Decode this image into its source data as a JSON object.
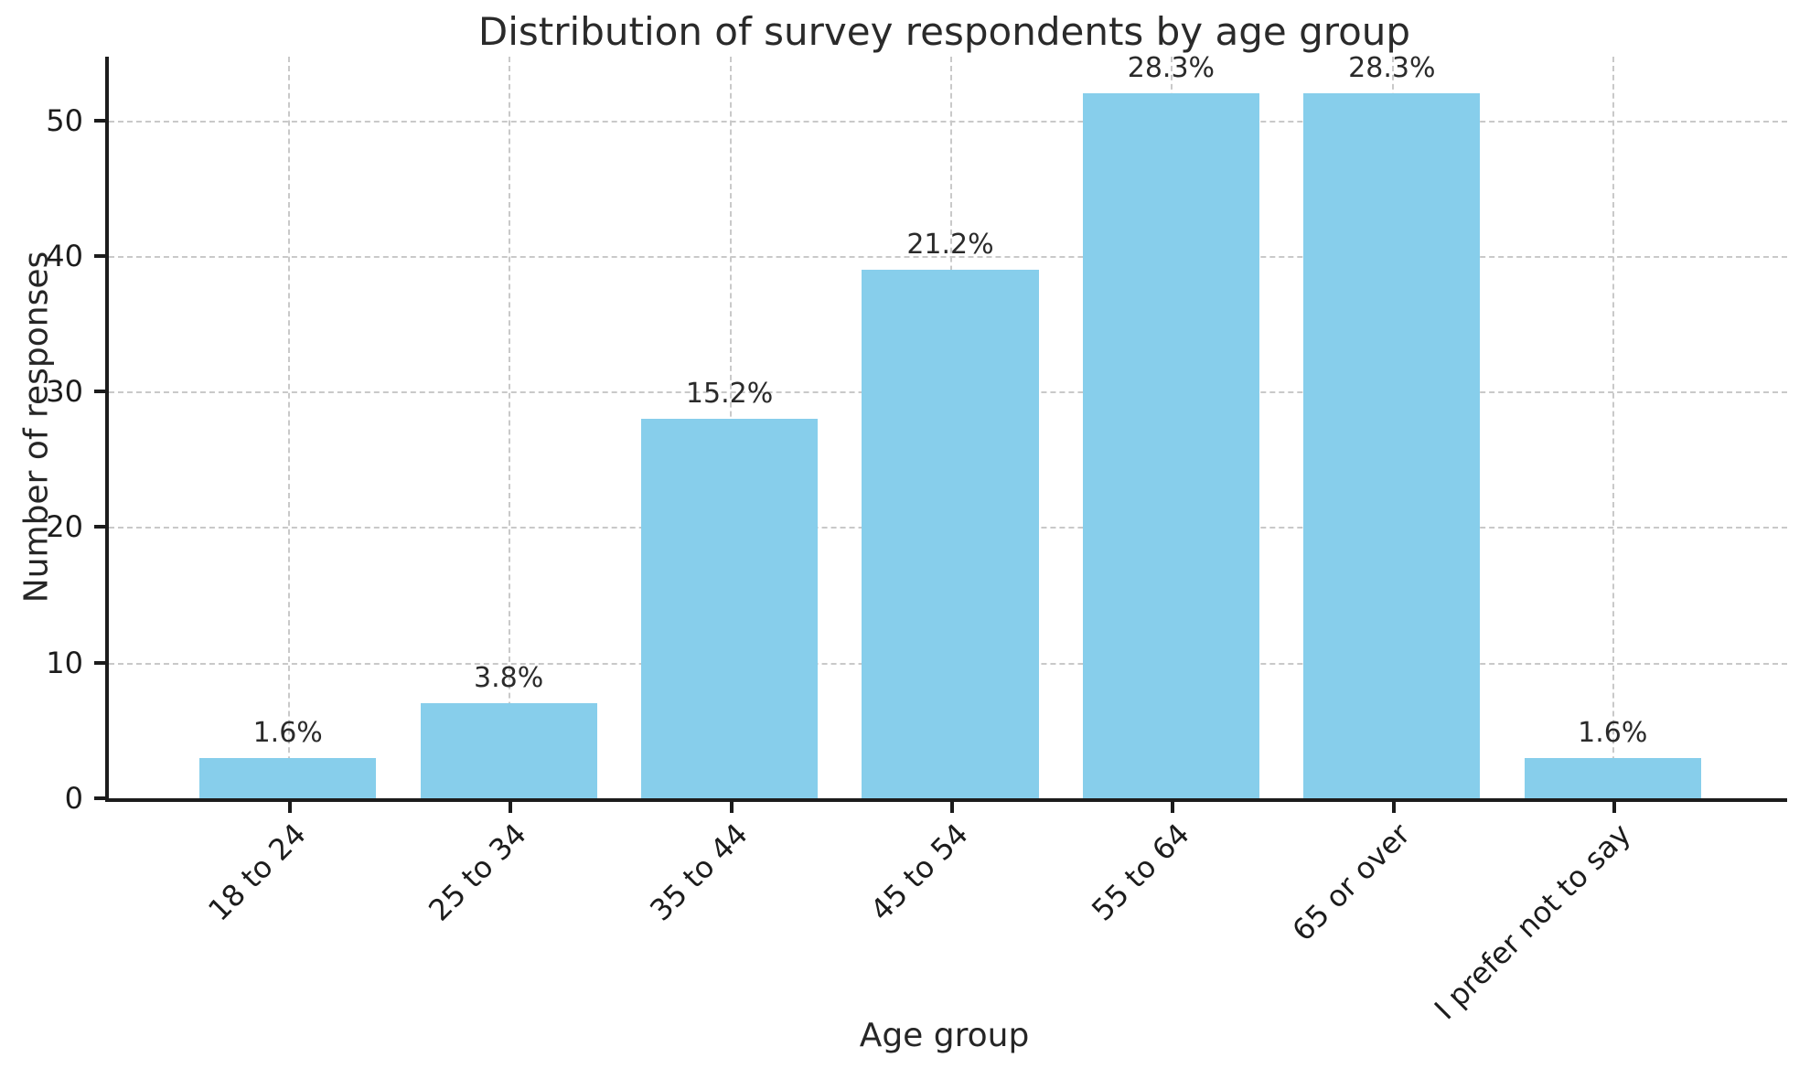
{
  "chart_data": {
    "type": "bar",
    "title": "Distribution of survey respondents by age group",
    "xlabel": "Age group",
    "ylabel": "Number of responses",
    "categories": [
      "18 to 24",
      "25 to 34",
      "35 to 44",
      "45 to 54",
      "55 to 64",
      "65 or over",
      "I prefer not to say"
    ],
    "values": [
      3,
      7,
      28,
      39,
      52,
      52,
      3
    ],
    "bar_labels": [
      "1.6%",
      "3.8%",
      "15.2%",
      "21.2%",
      "28.3%",
      "28.3%",
      "1.6%"
    ],
    "yticks": [
      0,
      10,
      20,
      30,
      40,
      50
    ],
    "ylim": [
      0,
      54.7
    ],
    "grid": "both, dashed, behind bars",
    "legend": "none",
    "bar_color": "#87CEEB",
    "gridline_color": "#c9c9c9",
    "spine_color": "#1c1c1c",
    "text_color": "#262626",
    "xtick_rotation_deg": 45
  }
}
